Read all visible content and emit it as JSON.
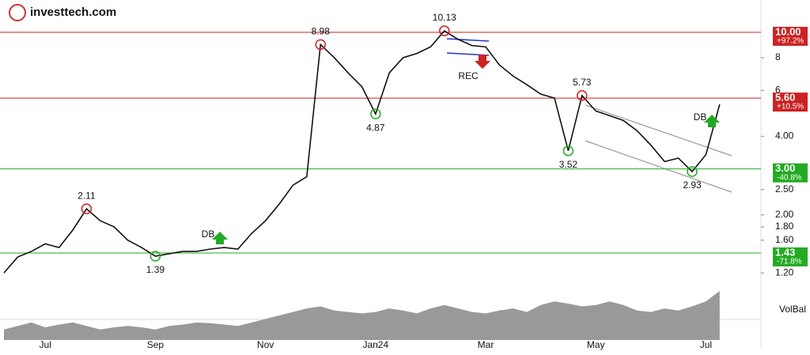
{
  "header": {
    "logo": "investtech.com"
  },
  "chart_data": {
    "type": "line",
    "log_scale": true,
    "categories": [
      null,
      null,
      null,
      "Jul",
      null,
      null,
      null,
      null,
      null,
      null,
      null,
      "Sep",
      null,
      null,
      null,
      null,
      null,
      null,
      null,
      "Nov",
      null,
      null,
      null,
      null,
      null,
      null,
      null,
      "Jan24",
      null,
      null,
      null,
      null,
      null,
      null,
      null,
      "Mar",
      null,
      null,
      null,
      null,
      null,
      null,
      null,
      "May",
      null,
      null,
      null,
      null,
      null,
      null,
      null,
      "Jul",
      null
    ],
    "series": [
      {
        "color": "#111111",
        "values": [
          1.2,
          1.38,
          1.45,
          1.55,
          1.5,
          1.75,
          2.11,
          1.9,
          1.8,
          1.6,
          1.5,
          1.39,
          1.42,
          1.45,
          1.45,
          1.48,
          1.5,
          1.48,
          1.7,
          1.9,
          2.2,
          2.6,
          2.8,
          8.98,
          8.0,
          7.0,
          6.2,
          4.87,
          7.0,
          8.0,
          8.3,
          8.8,
          10.13,
          9.4,
          8.9,
          8.8,
          7.5,
          6.8,
          6.3,
          5.8,
          5.6,
          3.52,
          5.73,
          5.0,
          4.8,
          4.6,
          4.2,
          3.7,
          3.2,
          3.3,
          2.93,
          3.4,
          5.3
        ]
      }
    ],
    "volume": {
      "label": "VolBal",
      "color": "#999999",
      "values": [
        15,
        20,
        25,
        18,
        22,
        25,
        20,
        15,
        18,
        20,
        18,
        15,
        20,
        22,
        25,
        24,
        22,
        20,
        25,
        30,
        35,
        40,
        45,
        48,
        42,
        40,
        38,
        40,
        45,
        42,
        38,
        45,
        50,
        45,
        40,
        38,
        42,
        45,
        40,
        50,
        55,
        52,
        48,
        50,
        55,
        50,
        42,
        40,
        45,
        42,
        48,
        55,
        70
      ]
    },
    "ylim": [
      1.12,
      13.3
    ],
    "yticks": [
      8,
      6,
      {
        "value": 4,
        "label": "4.00"
      },
      {
        "value": 2.5,
        "label": "2.50"
      },
      {
        "value": 2,
        "label": "2.00"
      },
      {
        "value": 1.8,
        "label": "1.80"
      },
      {
        "value": 1.6,
        "label": "1.60"
      },
      {
        "value": 1.2,
        "label": "1.20"
      }
    ],
    "levels": [
      {
        "value": 10,
        "label": "10.00",
        "change": "+97.2%",
        "color": "#cc2222"
      },
      {
        "value": 5.6,
        "label": "5.60",
        "change": "+10.5%",
        "color": "#cc2222"
      },
      {
        "value": 3,
        "label": "3.00",
        "change": "-40.8%",
        "color": "#22aa22"
      },
      {
        "value": 1.43,
        "label": "1.43",
        "change": "-71.8%",
        "color": "#22aa22"
      }
    ],
    "annotations": [
      {
        "label": "2.11",
        "value": 2.11,
        "kind": "high"
      },
      {
        "label": "1.39",
        "value": 1.39,
        "kind": "low"
      },
      {
        "label": "8.98",
        "value": 8.98,
        "kind": "high"
      },
      {
        "label": "4.87",
        "value": 4.87,
        "kind": "low"
      },
      {
        "label": "10.13",
        "value": 10.13,
        "kind": "high"
      },
      {
        "label": "5.73",
        "value": 5.73,
        "kind": "high"
      },
      {
        "label": "3.52",
        "value": 3.52,
        "kind": "low"
      },
      {
        "label": "2.93",
        "value": 2.93,
        "kind": "low"
      }
    ],
    "patterns": [
      "DB",
      "REC",
      "DB"
    ]
  }
}
